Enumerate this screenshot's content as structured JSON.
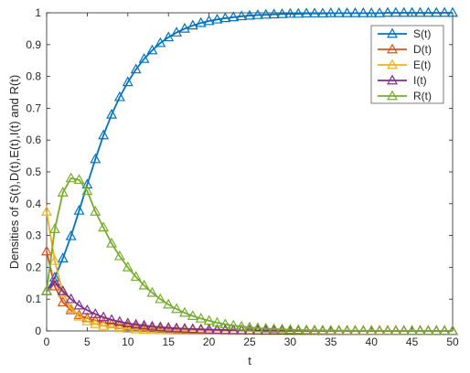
{
  "chart_data": {
    "type": "line",
    "xlabel": "t",
    "ylabel": "Densities of S(t),D(t),E(t),I(t) and R(t)",
    "xlim": [
      0,
      50
    ],
    "ylim": [
      0,
      1
    ],
    "xticks": [
      "0",
      "5",
      "10",
      "15",
      "20",
      "25",
      "30",
      "35",
      "40",
      "45",
      "50"
    ],
    "yticks": [
      "0",
      "0.1",
      "0.2",
      "0.3",
      "0.4",
      "0.5",
      "0.6",
      "0.7",
      "0.8",
      "0.9",
      "1"
    ],
    "grid": false,
    "legend_position": "top-right",
    "marker": "triangle",
    "x": [
      0,
      1,
      2,
      3,
      4,
      5,
      6,
      7,
      8,
      9,
      10,
      11,
      12,
      13,
      14,
      15,
      16,
      17,
      18,
      19,
      20,
      21,
      22,
      23,
      24,
      25,
      26,
      27,
      28,
      29,
      30,
      31,
      32,
      33,
      34,
      35,
      36,
      37,
      38,
      39,
      40,
      41,
      42,
      43,
      44,
      45,
      46,
      47,
      48,
      49,
      50
    ],
    "series": [
      {
        "name": "S(t)",
        "color": "#0072BD",
        "values": [
          0.125,
          0.168,
          0.228,
          0.298,
          0.378,
          0.46,
          0.54,
          0.615,
          0.68,
          0.735,
          0.782,
          0.822,
          0.855,
          0.882,
          0.905,
          0.923,
          0.938,
          0.95,
          0.96,
          0.968,
          0.974,
          0.979,
          0.983,
          0.986,
          0.989,
          0.991,
          0.993,
          0.994,
          0.995,
          0.996,
          0.997,
          0.997,
          0.998,
          0.998,
          0.998,
          0.999,
          0.999,
          0.999,
          0.999,
          0.999,
          0.999,
          0.999,
          1,
          1,
          1,
          1,
          1,
          1,
          1,
          1,
          1
        ]
      },
      {
        "name": "D(t)",
        "color": "#D95319",
        "values": [
          0.25,
          0.14,
          0.09,
          0.065,
          0.05,
          0.04,
          0.033,
          0.027,
          0.022,
          0.018,
          0.015,
          0.012,
          0.01,
          0.008,
          0.007,
          0.006,
          0.005,
          0.004,
          0.0035,
          0.003,
          0.0025,
          0.002,
          0.0018,
          0.0015,
          0.0012,
          0.001,
          0.0009,
          0.0008,
          0.0007,
          0.0006,
          0.0005,
          0.0005,
          0.0004,
          0.0004,
          0.0003,
          0.0003,
          0.0003,
          0.0002,
          0.0002,
          0.0002,
          0.0002,
          0.0001,
          0.0001,
          0.0001,
          0.0001,
          0.0001,
          0.0001,
          0.0001,
          0.0001,
          0.0001,
          0.0001
        ]
      },
      {
        "name": "E(t)",
        "color": "#EDB120",
        "values": [
          0.375,
          0.22,
          0.12,
          0.07,
          0.045,
          0.03,
          0.022,
          0.016,
          0.012,
          0.009,
          0.007,
          0.005,
          0.004,
          0.003,
          0.0025,
          0.002,
          0.0015,
          0.0012,
          0.001,
          0.0008,
          0.0006,
          0.0005,
          0.0004,
          0.0003,
          0.0003,
          0.0002,
          0.0002,
          0.0002,
          0.0001,
          0.0001,
          0.0001,
          0.0001,
          0.0001,
          0,
          0,
          0,
          0,
          0,
          0,
          0,
          0,
          0,
          0,
          0,
          0,
          0,
          0,
          0,
          0,
          0,
          0
        ]
      },
      {
        "name": "I(t)",
        "color": "#7E2F8E",
        "values": [
          0.125,
          0.155,
          0.125,
          0.1,
          0.08,
          0.065,
          0.053,
          0.043,
          0.035,
          0.029,
          0.024,
          0.02,
          0.017,
          0.014,
          0.012,
          0.01,
          0.0085,
          0.0072,
          0.0061,
          0.0052,
          0.0044,
          0.0037,
          0.0031,
          0.0026,
          0.0022,
          0.0018,
          0.0015,
          0.0013,
          0.0011,
          0.0009,
          0.0008,
          0.0007,
          0.0006,
          0.0005,
          0.0004,
          0.0003,
          0.0003,
          0.0002,
          0.0002,
          0.0002,
          0.0001,
          0.0001,
          0.0001,
          0.0001,
          0.0001,
          0.0001,
          0.0001,
          0.0001,
          0,
          0,
          0
        ]
      },
      {
        "name": "R(t)",
        "color": "#77AC30",
        "values": [
          0.125,
          0.32,
          0.435,
          0.48,
          0.475,
          0.44,
          0.375,
          0.325,
          0.275,
          0.235,
          0.2,
          0.17,
          0.143,
          0.12,
          0.1,
          0.083,
          0.069,
          0.057,
          0.047,
          0.039,
          0.032,
          0.026,
          0.021,
          0.017,
          0.014,
          0.011,
          0.009,
          0.0075,
          0.006,
          0.005,
          0.004,
          0.0032,
          0.0026,
          0.0021,
          0.0017,
          0.0014,
          0.0011,
          0.0009,
          0.0007,
          0.0006,
          0.0005,
          0.0004,
          0.0003,
          0.0003,
          0.0002,
          0.0002,
          0.0002,
          0.0001,
          0.0001,
          0.0001,
          0.0001
        ]
      }
    ]
  }
}
